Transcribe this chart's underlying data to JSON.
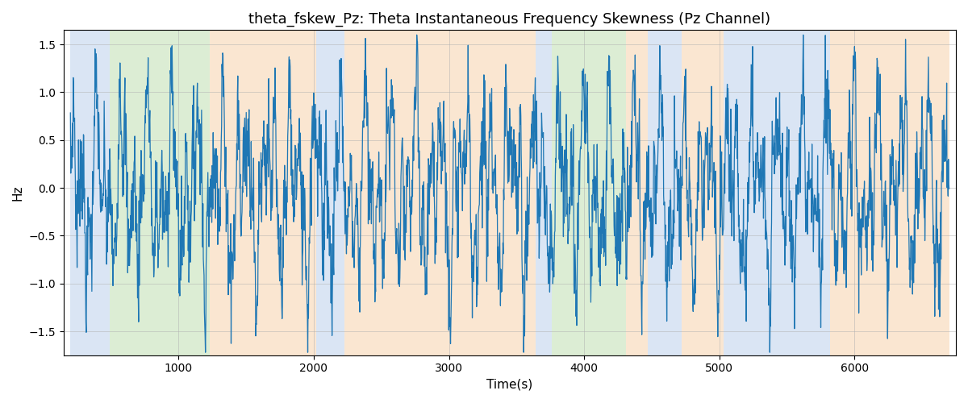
{
  "title": "theta_fskew_Pz: Theta Instantaneous Frequency Skewness (Pz Channel)",
  "xlabel": "Time(s)",
  "ylabel": "Hz",
  "ylim": [
    -1.75,
    1.65
  ],
  "xlim": [
    150,
    6750
  ],
  "line_color": "#1f77b4",
  "line_width": 0.9,
  "bg_regions": [
    {
      "xmin": 200,
      "xmax": 490,
      "color": "#aec6e8",
      "alpha": 0.45
    },
    {
      "xmin": 490,
      "xmax": 1230,
      "color": "#b2d9a0",
      "alpha": 0.45
    },
    {
      "xmin": 1230,
      "xmax": 2020,
      "color": "#f5c89a",
      "alpha": 0.45
    },
    {
      "xmin": 2020,
      "xmax": 2230,
      "color": "#aec6e8",
      "alpha": 0.45
    },
    {
      "xmin": 2230,
      "xmax": 3640,
      "color": "#f5c89a",
      "alpha": 0.45
    },
    {
      "xmin": 3640,
      "xmax": 3760,
      "color": "#aec6e8",
      "alpha": 0.45
    },
    {
      "xmin": 3760,
      "xmax": 4310,
      "color": "#b2d9a0",
      "alpha": 0.45
    },
    {
      "xmin": 4310,
      "xmax": 4470,
      "color": "#f5c89a",
      "alpha": 0.45
    },
    {
      "xmin": 4470,
      "xmax": 4720,
      "color": "#aec6e8",
      "alpha": 0.45
    },
    {
      "xmin": 4720,
      "xmax": 5030,
      "color": "#f5c89a",
      "alpha": 0.45
    },
    {
      "xmin": 5030,
      "xmax": 5820,
      "color": "#aec6e8",
      "alpha": 0.45
    },
    {
      "xmin": 5820,
      "xmax": 6150,
      "color": "#f5c89a",
      "alpha": 0.45
    },
    {
      "xmin": 6150,
      "xmax": 6700,
      "color": "#f5c89a",
      "alpha": 0.45
    }
  ],
  "grid_color": "#b0b0b0",
  "grid_alpha": 0.7,
  "title_fontsize": 13,
  "axis_fontsize": 11,
  "tick_fontsize": 10,
  "xticks": [
    1000,
    2000,
    3000,
    4000,
    5000,
    6000
  ],
  "yticks": [
    -1.5,
    -1.0,
    -0.5,
    0.0,
    0.5,
    1.0,
    1.5
  ],
  "figsize": [
    12,
    5
  ],
  "dpi": 100
}
